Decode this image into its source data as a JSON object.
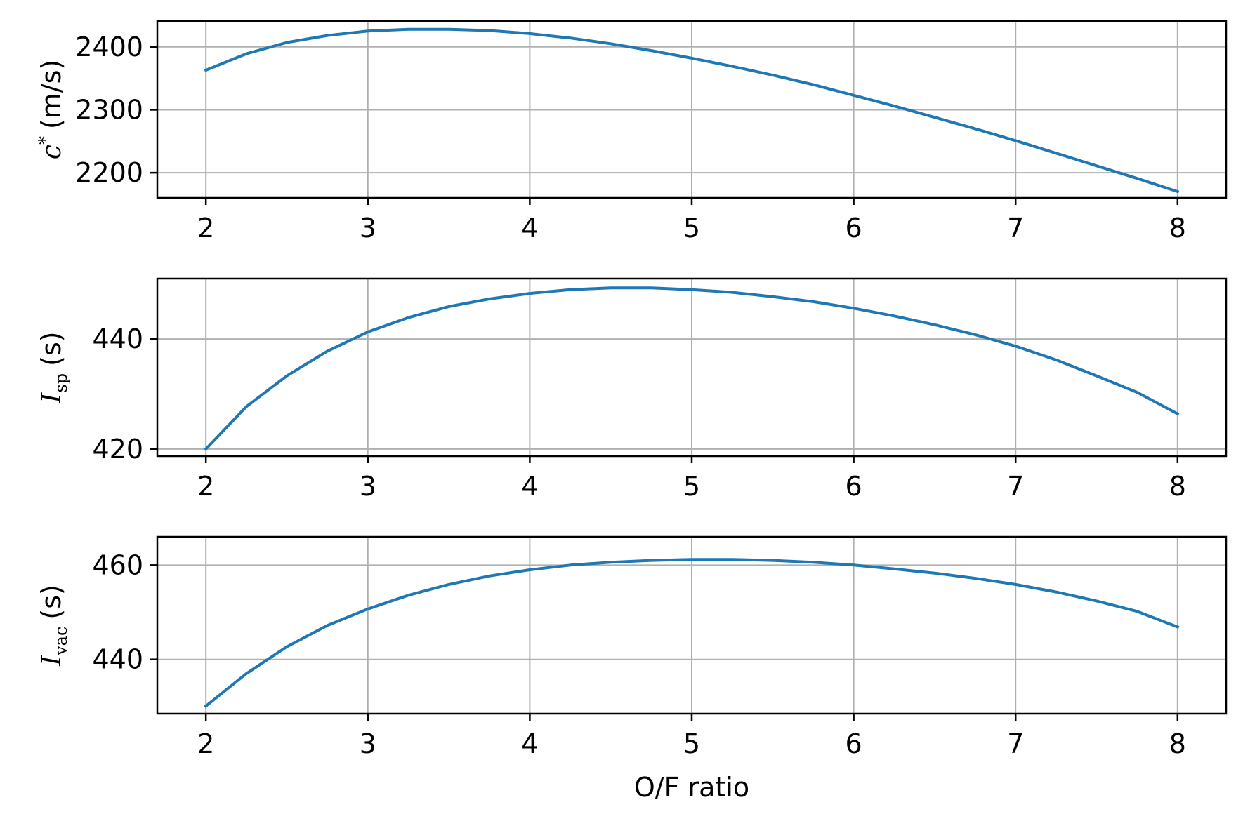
{
  "colors": {
    "series": "#1f77b4",
    "grid": "#b0b0b0"
  },
  "chart_data": [
    {
      "type": "line",
      "ylabel": {
        "symbol": "c",
        "superscript": "*",
        "unit": "(m/s)"
      },
      "xlim": [
        1.7,
        8.3
      ],
      "ylim": [
        2160,
        2441
      ],
      "xticks": [
        2,
        3,
        4,
        5,
        6,
        7,
        8
      ],
      "yticks": [
        2200,
        2300,
        2400
      ],
      "grid": true,
      "x": [
        2,
        2.25,
        2.5,
        2.75,
        3,
        3.25,
        3.5,
        3.75,
        4,
        4.25,
        4.5,
        4.75,
        5,
        5.25,
        5.5,
        5.75,
        6,
        6.25,
        6.5,
        6.75,
        7,
        7.25,
        7.5,
        7.75,
        8
      ],
      "series": [
        {
          "values": [
            2363,
            2389,
            2407,
            2418,
            2425,
            2428,
            2428,
            2426,
            2421,
            2414,
            2405,
            2394,
            2382,
            2369,
            2355,
            2340,
            2323,
            2306,
            2288,
            2270,
            2251,
            2231,
            2211,
            2191,
            2170
          ]
        }
      ]
    },
    {
      "type": "line",
      "ylabel": {
        "symbol": "I",
        "subscript": "sp",
        "unit": "(s)"
      },
      "xlim": [
        1.7,
        8.3
      ],
      "ylim": [
        418.7,
        451
      ],
      "xticks": [
        2,
        3,
        4,
        5,
        6,
        7,
        8
      ],
      "yticks": [
        420,
        440
      ],
      "grid": true,
      "x": [
        2,
        2.25,
        2.5,
        2.75,
        3,
        3.25,
        3.5,
        3.75,
        4,
        4.25,
        4.5,
        4.75,
        5,
        5.25,
        5.5,
        5.75,
        6,
        6.25,
        6.5,
        6.75,
        7,
        7.25,
        7.5,
        7.75,
        8
      ],
      "series": [
        {
          "values": [
            420.0,
            427.7,
            433.3,
            437.8,
            441.3,
            443.9,
            445.9,
            447.3,
            448.3,
            449.0,
            449.3,
            449.3,
            449.0,
            448.5,
            447.7,
            446.8,
            445.6,
            444.2,
            442.6,
            440.8,
            438.7,
            436.2,
            433.3,
            430.3,
            426.4
          ]
        }
      ]
    },
    {
      "type": "line",
      "ylabel": {
        "symbol": "I",
        "subscript": "vac",
        "unit": "(s)"
      },
      "xlim": [
        1.7,
        8.3
      ],
      "ylim": [
        428.5,
        466
      ],
      "xticks": [
        2,
        3,
        4,
        5,
        6,
        7,
        8
      ],
      "yticks": [
        440,
        460
      ],
      "xlabel": "O/F ratio",
      "grid": true,
      "x": [
        2,
        2.25,
        2.5,
        2.75,
        3,
        3.25,
        3.5,
        3.75,
        4,
        4.25,
        4.5,
        4.75,
        5,
        5.25,
        5.5,
        5.75,
        6,
        6.25,
        6.5,
        6.75,
        7,
        7.25,
        7.5,
        7.75,
        8
      ],
      "series": [
        {
          "values": [
            430.1,
            437.0,
            442.7,
            447.2,
            450.7,
            453.6,
            455.9,
            457.7,
            459.0,
            460.0,
            460.6,
            461.0,
            461.2,
            461.2,
            461.0,
            460.6,
            460.0,
            459.2,
            458.3,
            457.2,
            455.9,
            454.3,
            452.4,
            450.2,
            446.9
          ]
        }
      ]
    }
  ]
}
